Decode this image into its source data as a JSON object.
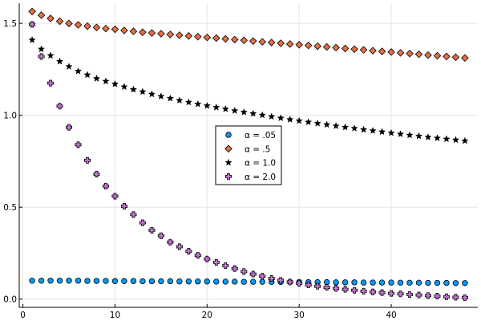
{
  "chart_data": {
    "type": "scatter",
    "title": "",
    "xlabel": "",
    "ylabel": "",
    "xlim": [
      -0.4,
      49.4
    ],
    "ylim": [
      -0.045,
      1.61
    ],
    "x_ticks": [
      0,
      10,
      20,
      30,
      40
    ],
    "y_ticks": [
      0.0,
      0.5,
      1.0,
      1.5
    ],
    "x_tick_labels": [
      "0",
      "10",
      "20",
      "30",
      "40"
    ],
    "y_tick_labels": [
      "0.0",
      "0.5",
      "1.0",
      "1.5"
    ],
    "grid": true,
    "legend_position": "center",
    "x": [
      1,
      2,
      3,
      4,
      5,
      6,
      7,
      8,
      9,
      10,
      11,
      12,
      13,
      14,
      15,
      16,
      17,
      18,
      19,
      20,
      21,
      22,
      23,
      24,
      25,
      26,
      27,
      28,
      29,
      30,
      31,
      32,
      33,
      34,
      35,
      36,
      37,
      38,
      39,
      40,
      41,
      42,
      43,
      44,
      45,
      46,
      47,
      48
    ],
    "series": [
      {
        "name": "α = .05",
        "marker": "circle",
        "color": "#009AFA",
        "values": [
          0.1,
          0.1,
          0.1,
          0.1,
          0.1,
          0.1,
          0.099,
          0.099,
          0.099,
          0.098,
          0.098,
          0.098,
          0.097,
          0.097,
          0.097,
          0.097,
          0.096,
          0.096,
          0.096,
          0.096,
          0.095,
          0.095,
          0.095,
          0.094,
          0.094,
          0.094,
          0.093,
          0.093,
          0.093,
          0.093,
          0.092,
          0.092,
          0.092,
          0.091,
          0.091,
          0.091,
          0.09,
          0.09,
          0.09,
          0.09,
          0.089,
          0.089,
          0.089,
          0.088,
          0.088,
          0.088,
          0.087,
          0.087
        ]
      },
      {
        "name": "α = .5",
        "marker": "diamond",
        "color": "#E36F47",
        "values": [
          1.565,
          1.545,
          1.527,
          1.512,
          1.5,
          1.492,
          1.485,
          1.478,
          1.472,
          1.468,
          1.462,
          1.457,
          1.452,
          1.448,
          1.444,
          1.44,
          1.436,
          1.432,
          1.428,
          1.424,
          1.42,
          1.416,
          1.412,
          1.408,
          1.404,
          1.4,
          1.396,
          1.392,
          1.388,
          1.384,
          1.38,
          1.376,
          1.372,
          1.368,
          1.364,
          1.36,
          1.356,
          1.352,
          1.348,
          1.344,
          1.34,
          1.336,
          1.332,
          1.328,
          1.324,
          1.32,
          1.316,
          1.312
        ]
      },
      {
        "name": "α = 1.0",
        "marker": "star",
        "color": "#000000",
        "values": [
          1.41,
          1.36,
          1.325,
          1.293,
          1.265,
          1.24,
          1.22,
          1.2,
          1.185,
          1.17,
          1.155,
          1.14,
          1.128,
          1.115,
          1.103,
          1.092,
          1.081,
          1.071,
          1.061,
          1.052,
          1.043,
          1.034,
          1.025,
          1.017,
          1.009,
          1.001,
          0.993,
          0.985,
          0.977,
          0.97,
          0.963,
          0.956,
          0.949,
          0.942,
          0.935,
          0.929,
          0.922,
          0.916,
          0.91,
          0.904,
          0.898,
          0.892,
          0.887,
          0.881,
          0.876,
          0.871,
          0.866,
          0.861
        ]
      },
      {
        "name": "α = 2.0",
        "marker": "cross",
        "color": "#C271D2",
        "values": [
          1.495,
          1.32,
          1.175,
          1.05,
          0.935,
          0.84,
          0.755,
          0.68,
          0.615,
          0.56,
          0.505,
          0.46,
          0.415,
          0.375,
          0.345,
          0.31,
          0.285,
          0.26,
          0.238,
          0.218,
          0.2,
          0.182,
          0.166,
          0.15,
          0.136,
          0.124,
          0.112,
          0.102,
          0.093,
          0.085,
          0.077,
          0.07,
          0.064,
          0.058,
          0.053,
          0.048,
          0.043,
          0.039,
          0.035,
          0.031,
          0.028,
          0.025,
          0.022,
          0.019,
          0.016,
          0.013,
          0.01,
          0.008
        ]
      }
    ]
  }
}
